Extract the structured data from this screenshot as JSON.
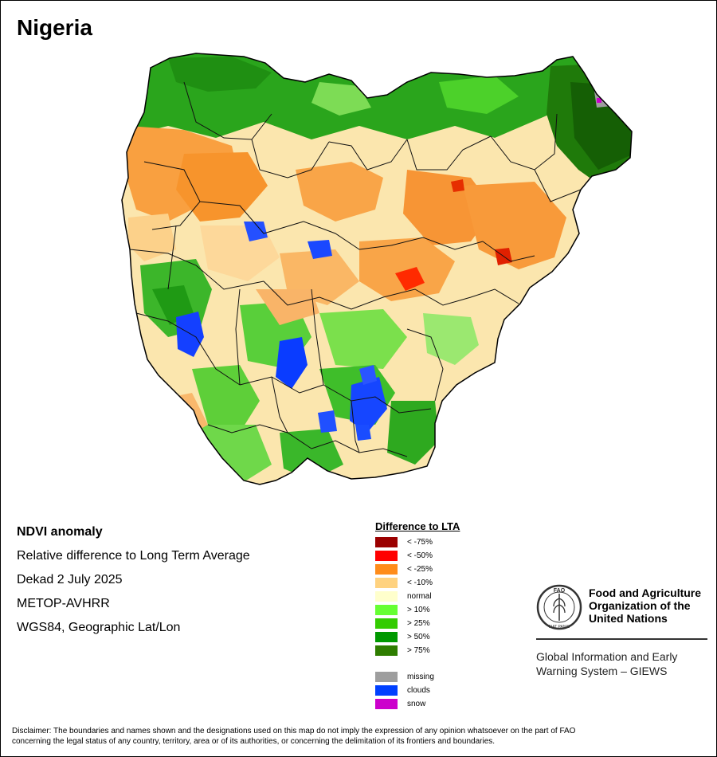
{
  "title": "Nigeria",
  "info": {
    "line1": "NDVI anomaly",
    "line2": "Relative difference to Long Term Average",
    "line3": "Dekad 2 July 2025",
    "line4": "METOP-AVHRR",
    "line5": "WGS84, Geographic Lat/Lon"
  },
  "legend": {
    "title": "Difference to LTA",
    "classes": [
      {
        "label": "< -75%",
        "color": "#9b0000"
      },
      {
        "label": "< -50%",
        "color": "#ff0000"
      },
      {
        "label": "< -25%",
        "color": "#ff8c1a"
      },
      {
        "label": "< -10%",
        "color": "#ffd27f"
      },
      {
        "label": "normal",
        "color": "#ffffcc"
      },
      {
        "label": "> 10%",
        "color": "#66ff33"
      },
      {
        "label": "> 25%",
        "color": "#33cc00"
      },
      {
        "label": "> 50%",
        "color": "#009900"
      },
      {
        "label": "> 75%",
        "color": "#2e7d00"
      }
    ],
    "special": [
      {
        "label": "missing",
        "color": "#9e9e9e"
      },
      {
        "label": "clouds",
        "color": "#0040ff"
      },
      {
        "label": "snow",
        "color": "#cc00cc"
      }
    ]
  },
  "logo": {
    "org_line1": "Food and Agriculture",
    "org_line2": "Organization of the",
    "org_line3": "United Nations",
    "emblem_text": "FAO",
    "motto": "FIAT PANIS",
    "system_line1": "Global Information and Early",
    "system_line2": "Warning System – GIEWS"
  },
  "disclaimer": {
    "line1": "Disclaimer: The boundaries and names shown and the designations used on this map do not imply the expression of any opinion whatsoever on the part of FAO",
    "line2": "concerning the legal status of any country, territory, area or of its authorities, or concerning the delimitation of its frontiers and boundaries."
  }
}
